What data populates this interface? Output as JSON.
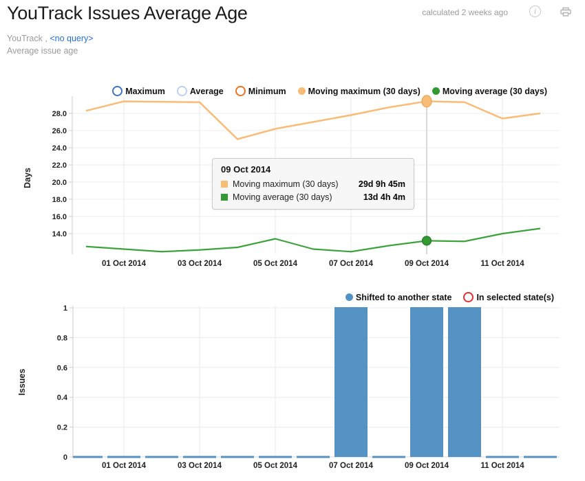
{
  "header": {
    "title": "YouTrack Issues Average Age",
    "calculated": "calculated 2 weeks ago",
    "info_icon": "i"
  },
  "subtitle": {
    "source": "YouTrack ,",
    "query_link": "<no query>",
    "description": "Average issue age"
  },
  "colors": {
    "maximum_ring": "#3a76c4",
    "average_ring": "#bcd1ed",
    "minimum_ring": "#ef7023",
    "moving_maximum": "#f9bc76",
    "moving_maximum_marker_stroke": "#eba65b",
    "moving_average": "#3ca23c",
    "moving_average_fill": "#339a33",
    "moving_average_marker_stroke": "#27782a",
    "bar_blue": "#5592c4",
    "in_selected_ring": "#e62e32",
    "link_blue": "#2470d8",
    "grid": "#ececec",
    "axis": "#cccccc",
    "hover_line": "#d9d9d9",
    "muted_text": "#9b9b9b"
  },
  "tooltip": {
    "date": "09 Oct 2014",
    "rows": [
      {
        "label": "Moving maximum (30 days)",
        "value": "29d 9h 45m",
        "color": "#f9bc76",
        "marker": "filled"
      },
      {
        "label": "Moving average (30 days)",
        "value": "13d 4h 4m",
        "color": "#339a33",
        "marker": "filled"
      }
    ]
  },
  "chart_data": [
    {
      "type": "line",
      "title": "",
      "xlabel": "",
      "ylabel": "Days",
      "grid": true,
      "legend_position": "top",
      "x": [
        "30 Sep 2014",
        "01 Oct 2014",
        "02 Oct 2014",
        "03 Oct 2014",
        "04 Oct 2014",
        "05 Oct 2014",
        "06 Oct 2014",
        "07 Oct 2014",
        "08 Oct 2014",
        "09 Oct 2014",
        "10 Oct 2014",
        "11 Oct 2014",
        "12 Oct 2014"
      ],
      "xtick_labels": [
        "01 Oct 2014",
        "03 Oct 2014",
        "05 Oct 2014",
        "07 Oct 2014",
        "09 Oct 2014",
        "11 Oct 2014"
      ],
      "ytick_values": [
        28,
        26,
        24,
        22,
        20,
        18,
        16,
        14
      ],
      "ytick_labels": [
        "28.0",
        "26.0",
        "24.0",
        "22.0",
        "20.0",
        "18.0",
        "16.0",
        "14.0"
      ],
      "ylim": [
        11.6,
        30
      ],
      "legend": [
        {
          "label": "Maximum",
          "marker": "ring",
          "color": "#3a76c4",
          "series_drawn": false
        },
        {
          "label": "Average",
          "marker": "ring",
          "color": "#bcd1ed",
          "series_drawn": false
        },
        {
          "label": "Minimum",
          "marker": "ring",
          "color": "#ef7023",
          "series_drawn": false
        },
        {
          "label": "Moving maximum (30 days)",
          "marker": "filled",
          "color": "#f9bc76",
          "series_drawn": true
        },
        {
          "label": "Moving average (30 days)",
          "marker": "filled",
          "color": "#339a33",
          "series_drawn": true
        }
      ],
      "series": [
        {
          "name": "Moving maximum (30 days)",
          "color": "#f9bc76",
          "values": [
            28.3,
            29.4,
            29.35,
            29.3,
            25.0,
            26.2,
            27.0,
            27.8,
            28.7,
            29.41,
            29.3,
            27.4,
            28.0
          ]
        },
        {
          "name": "Moving average (30 days)",
          "color": "#3ca23c",
          "values": [
            12.5,
            12.2,
            11.9,
            12.1,
            12.4,
            13.4,
            12.2,
            11.9,
            12.6,
            13.17,
            13.1,
            14.0,
            14.6
          ]
        }
      ],
      "highlight": {
        "date": "09 Oct 2014",
        "moving_maximum": "29d 9h 45m",
        "moving_average": "13d 4h 4m"
      }
    },
    {
      "type": "bar",
      "title": "",
      "xlabel": "",
      "ylabel": "Issues",
      "grid": true,
      "legend_position": "top",
      "x": [
        "30 Sep 2014",
        "01 Oct 2014",
        "02 Oct 2014",
        "03 Oct 2014",
        "04 Oct 2014",
        "05 Oct 2014",
        "06 Oct 2014",
        "07 Oct 2014",
        "08 Oct 2014",
        "09 Oct 2014",
        "10 Oct 2014",
        "11 Oct 2014",
        "12 Oct 2014"
      ],
      "xtick_labels": [
        "01 Oct 2014",
        "03 Oct 2014",
        "05 Oct 2014",
        "07 Oct 2014",
        "09 Oct 2014",
        "11 Oct 2014"
      ],
      "ytick_values": [
        0,
        0.2,
        0.4,
        0.6,
        0.8,
        1
      ],
      "ytick_labels": [
        "0",
        "0.2",
        "0.4",
        "0.6",
        "0.8",
        "1"
      ],
      "ylim": [
        0,
        1
      ],
      "legend": [
        {
          "label": "Shifted to another state",
          "marker": "filled",
          "color": "#5592c4"
        },
        {
          "label": "In selected state(s)",
          "marker": "ring",
          "color": "#e62e32"
        }
      ],
      "series": [
        {
          "name": "Shifted to another state",
          "color": "#5592c4",
          "values": [
            0,
            0,
            0,
            0,
            0,
            0,
            0,
            1,
            0,
            1,
            1,
            0,
            0
          ]
        }
      ]
    }
  ]
}
